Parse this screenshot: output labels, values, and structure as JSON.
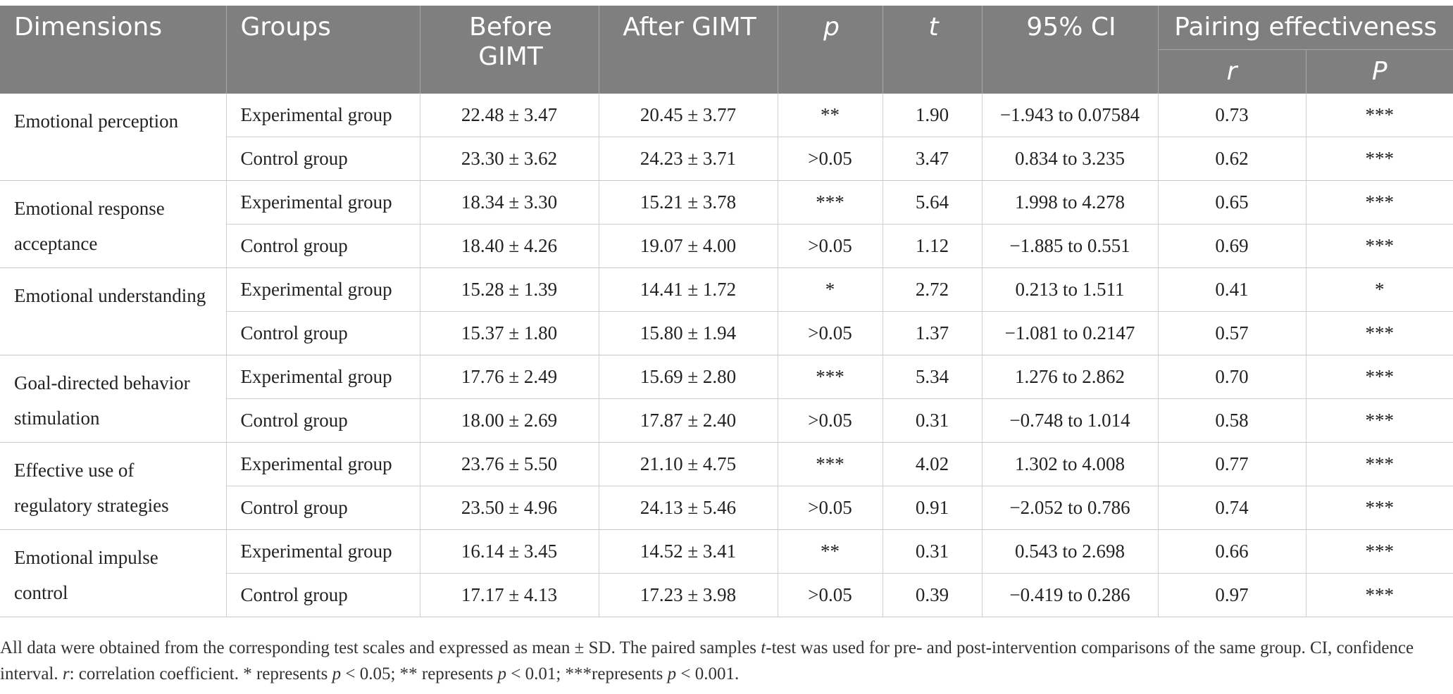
{
  "header": {
    "dimensions": "Dimensions",
    "groups": "Groups",
    "before": "Before GIMT",
    "after": "After GIMT",
    "p": "p",
    "t": "t",
    "ci": "95% CI",
    "pairing": "Pairing effectiveness",
    "r": "r",
    "P": "P"
  },
  "rows": [
    {
      "dimension": "Emotional perception",
      "experimental": {
        "group": "Experimental group",
        "before": "22.48 ± 3.47",
        "after": "20.45 ± 3.77",
        "p": "**",
        "t": "1.90",
        "ci": "−1.943 to 0.07584",
        "r": "0.73",
        "P": "***"
      },
      "control": {
        "group": "Control group",
        "before": "23.30 ± 3.62",
        "after": "24.23 ± 3.71",
        "p": ">0.05",
        "t": "3.47",
        "ci": "0.834 to 3.235",
        "r": "0.62",
        "P": "***"
      }
    },
    {
      "dimension": "Emotional response acceptance",
      "experimental": {
        "group": "Experimental group",
        "before": "18.34 ± 3.30",
        "after": "15.21 ± 3.78",
        "p": "***",
        "t": "5.64",
        "ci": "1.998 to 4.278",
        "r": "0.65",
        "P": "***"
      },
      "control": {
        "group": "Control group",
        "before": "18.40 ± 4.26",
        "after": "19.07 ± 4.00",
        "p": ">0.05",
        "t": "1.12",
        "ci": "−1.885 to 0.551",
        "r": "0.69",
        "P": "***"
      }
    },
    {
      "dimension": "Emotional understanding",
      "experimental": {
        "group": "Experimental group",
        "before": "15.28 ± 1.39",
        "after": "14.41 ± 1.72",
        "p": "*",
        "t": "2.72",
        "ci": "0.213 to 1.511",
        "r": "0.41",
        "P": "*"
      },
      "control": {
        "group": "Control group",
        "before": "15.37 ± 1.80",
        "after": "15.80 ± 1.94",
        "p": ">0.05",
        "t": "1.37",
        "ci": "−1.081 to 0.2147",
        "r": "0.57",
        "P": "***"
      }
    },
    {
      "dimension": "Goal-directed behavior stimulation",
      "experimental": {
        "group": "Experimental group",
        "before": "17.76 ± 2.49",
        "after": "15.69 ± 2.80",
        "p": "***",
        "t": "5.34",
        "ci": "1.276 to 2.862",
        "r": "0.70",
        "P": "***"
      },
      "control": {
        "group": "Control group",
        "before": "18.00 ± 2.69",
        "after": "17.87 ± 2.40",
        "p": ">0.05",
        "t": "0.31",
        "ci": "−0.748 to 1.014",
        "r": "0.58",
        "P": "***"
      }
    },
    {
      "dimension": "Effective use of regulatory strategies",
      "experimental": {
        "group": "Experimental group",
        "before": "23.76 ± 5.50",
        "after": "21.10 ± 4.75",
        "p": "***",
        "t": "4.02",
        "ci": "1.302 to 4.008",
        "r": "0.77",
        "P": "***"
      },
      "control": {
        "group": "Control group",
        "before": "23.50 ± 4.96",
        "after": "24.13 ± 5.46",
        "p": ">0.05",
        "t": "0.91",
        "ci": "−2.052 to 0.786",
        "r": "0.74",
        "P": "***"
      }
    },
    {
      "dimension": "Emotional impulse control",
      "experimental": {
        "group": "Experimental group",
        "before": "16.14 ± 3.45",
        "after": "14.52 ± 3.41",
        "p": "**",
        "t": "0.31",
        "ci": "0.543 to 2.698",
        "r": "0.66",
        "P": "***"
      },
      "control": {
        "group": "Control group",
        "before": "17.17 ± 4.13",
        "after": "17.23 ± 3.98",
        "p": ">0.05",
        "t": "0.39",
        "ci": "−0.419 to 0.286",
        "r": "0.97",
        "P": "***"
      }
    }
  ],
  "footnote": {
    "s1": "All data were obtained from the corresponding test scales and expressed as mean ± SD. The paired samples ",
    "t": "t",
    "s2": "-test was used for pre- and post-intervention comparisons of the same group. CI, confidence interval. ",
    "r": "r",
    "s3": ": correlation coefficient. * represents ",
    "p1": "p",
    "s4": " < 0.05; ** represents ",
    "p2": "p",
    "s5": " < 0.01; ***represents ",
    "p3": "p",
    "s6": " < 0.001."
  }
}
